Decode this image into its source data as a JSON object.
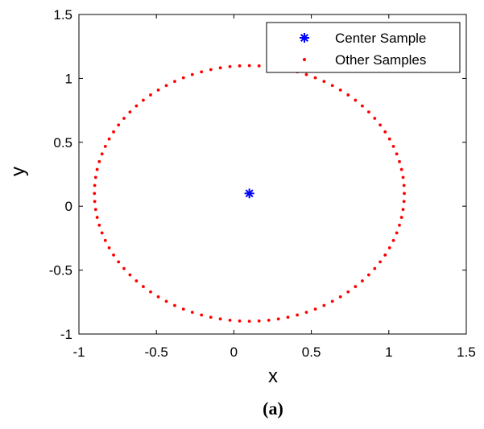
{
  "chart_data": {
    "type": "scatter",
    "xlabel": "x",
    "ylabel": "y",
    "caption": "(a)",
    "xlim": [
      -1,
      1.5
    ],
    "ylim": [
      -1,
      1.5
    ],
    "xticks": [
      -1,
      -0.5,
      0,
      0.5,
      1,
      1.5
    ],
    "yticks": [
      -1,
      -0.5,
      0,
      0.5,
      1,
      1.5
    ],
    "xtick_labels": [
      "-1",
      "-0.5",
      "0",
      "0.5",
      "1",
      "1.5"
    ],
    "ytick_labels": [
      "-1",
      "-0.5",
      "0",
      "0.5",
      "1",
      "1.5"
    ],
    "grid": false,
    "legend_position": "top-right",
    "series": [
      {
        "name": "Center Sample",
        "marker": "asterisk",
        "color": "#0000ff",
        "points": [
          [
            0.1,
            0.1
          ]
        ]
      },
      {
        "name": "Other Samples",
        "marker": "dot",
        "color": "#ff0000",
        "shape": "circle",
        "center": [
          0.1,
          0.1
        ],
        "radius": 1.0,
        "count": 100
      }
    ]
  }
}
